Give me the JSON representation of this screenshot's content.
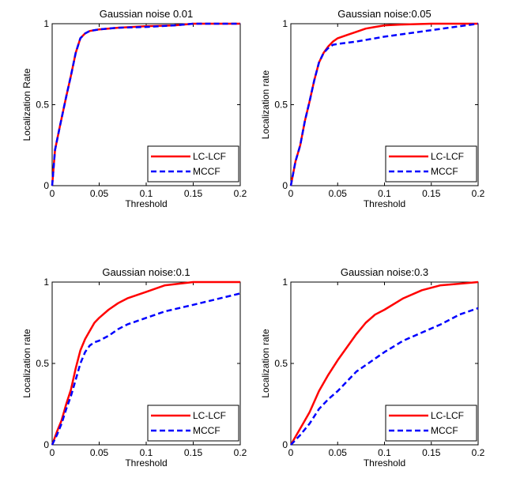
{
  "chart_data": [
    {
      "type": "line",
      "title": "Gaussian noise 0.01",
      "xlabel": "Threshold",
      "ylabel": "Localization Rate",
      "xlim": [
        0,
        0.2
      ],
      "ylim": [
        0,
        1
      ],
      "xticks": [
        "0",
        "0.05",
        "0.1",
        "0.15",
        "0.2"
      ],
      "yticks": [
        "0",
        "0.5",
        "1"
      ],
      "legend": "bottom-right",
      "grid": false,
      "series": [
        {
          "name": "LC-LCF",
          "color": "#ff0000",
          "style": "solid",
          "x": [
            0,
            0.003,
            0.008,
            0.015,
            0.02,
            0.025,
            0.03,
            0.035,
            0.04,
            0.05,
            0.07,
            0.1,
            0.13,
            0.15,
            0.2
          ],
          "y": [
            0,
            0.22,
            0.36,
            0.55,
            0.68,
            0.82,
            0.91,
            0.94,
            0.955,
            0.965,
            0.975,
            0.985,
            0.99,
            1.0,
            1.0
          ]
        },
        {
          "name": "MCCF",
          "color": "#0000ff",
          "style": "dashed",
          "x": [
            0,
            0.003,
            0.008,
            0.015,
            0.02,
            0.025,
            0.03,
            0.035,
            0.04,
            0.05,
            0.07,
            0.1,
            0.13,
            0.15,
            0.2
          ],
          "y": [
            0,
            0.22,
            0.36,
            0.55,
            0.68,
            0.82,
            0.91,
            0.94,
            0.955,
            0.965,
            0.975,
            0.98,
            0.99,
            1.0,
            1.0
          ]
        }
      ]
    },
    {
      "type": "line",
      "title": "Gaussian noise:0.05",
      "xlabel": "Threshold",
      "ylabel": "Localization rate",
      "xlim": [
        0,
        0.2
      ],
      "ylim": [
        0,
        1
      ],
      "xticks": [
        "0",
        "0.05",
        "0.1",
        "0.15",
        "0.2"
      ],
      "yticks": [
        "0",
        "0.5",
        "1"
      ],
      "legend": "bottom-right",
      "grid": false,
      "series": [
        {
          "name": "LC-LCF",
          "color": "#ff0000",
          "style": "solid",
          "x": [
            0,
            0.005,
            0.01,
            0.015,
            0.02,
            0.025,
            0.03,
            0.035,
            0.04,
            0.045,
            0.05,
            0.06,
            0.07,
            0.08,
            0.09,
            0.1,
            0.12,
            0.15,
            0.2
          ],
          "y": [
            0,
            0.15,
            0.25,
            0.4,
            0.52,
            0.65,
            0.76,
            0.82,
            0.86,
            0.89,
            0.91,
            0.93,
            0.95,
            0.97,
            0.98,
            0.99,
            0.995,
            1.0,
            1.0
          ]
        },
        {
          "name": "MCCF",
          "color": "#0000ff",
          "style": "dashed",
          "x": [
            0,
            0.005,
            0.01,
            0.015,
            0.02,
            0.025,
            0.03,
            0.035,
            0.04,
            0.045,
            0.05,
            0.07,
            0.1,
            0.15,
            0.2
          ],
          "y": [
            0,
            0.15,
            0.25,
            0.4,
            0.52,
            0.65,
            0.76,
            0.82,
            0.85,
            0.87,
            0.875,
            0.89,
            0.92,
            0.96,
            1.0
          ]
        }
      ]
    },
    {
      "type": "line",
      "title": "Gaussian noise:0.1",
      "xlabel": "Threshold",
      "ylabel": "Localization rate",
      "xlim": [
        0,
        0.2
      ],
      "ylim": [
        0,
        1
      ],
      "xticks": [
        "0",
        "0.05",
        "0.1",
        "0.15",
        "0.2"
      ],
      "yticks": [
        "0",
        "0.5",
        "1"
      ],
      "legend": "bottom-right",
      "grid": false,
      "series": [
        {
          "name": "LC-LCF",
          "color": "#ff0000",
          "style": "solid",
          "x": [
            0,
            0.005,
            0.01,
            0.015,
            0.02,
            0.025,
            0.03,
            0.035,
            0.04,
            0.045,
            0.05,
            0.06,
            0.07,
            0.08,
            0.1,
            0.12,
            0.15,
            0.2
          ],
          "y": [
            0,
            0.08,
            0.15,
            0.25,
            0.34,
            0.47,
            0.58,
            0.65,
            0.7,
            0.75,
            0.78,
            0.83,
            0.87,
            0.9,
            0.94,
            0.98,
            1.0,
            1.0
          ]
        },
        {
          "name": "MCCF",
          "color": "#0000ff",
          "style": "dashed",
          "x": [
            0,
            0.005,
            0.01,
            0.015,
            0.02,
            0.025,
            0.03,
            0.035,
            0.04,
            0.045,
            0.05,
            0.06,
            0.07,
            0.08,
            0.1,
            0.12,
            0.15,
            0.2
          ],
          "y": [
            0,
            0.06,
            0.13,
            0.22,
            0.3,
            0.4,
            0.5,
            0.57,
            0.61,
            0.63,
            0.64,
            0.67,
            0.71,
            0.74,
            0.78,
            0.82,
            0.86,
            0.93
          ]
        }
      ]
    },
    {
      "type": "line",
      "title": "Gaussian noise:0.3",
      "xlabel": "Threshold",
      "ylabel": "Localization rate",
      "xlim": [
        0,
        0.2
      ],
      "ylim": [
        0,
        1
      ],
      "xticks": [
        "0",
        "0.05",
        "0.1",
        "0.15",
        "0.2"
      ],
      "yticks": [
        "0",
        "0.5",
        "1"
      ],
      "legend": "bottom-right",
      "grid": false,
      "series": [
        {
          "name": "LC-LCF",
          "color": "#ff0000",
          "style": "solid",
          "x": [
            0,
            0.01,
            0.02,
            0.03,
            0.04,
            0.05,
            0.06,
            0.07,
            0.08,
            0.09,
            0.1,
            0.12,
            0.14,
            0.16,
            0.18,
            0.2
          ],
          "y": [
            0,
            0.1,
            0.2,
            0.33,
            0.43,
            0.52,
            0.6,
            0.68,
            0.75,
            0.8,
            0.83,
            0.9,
            0.95,
            0.98,
            0.99,
            1.0
          ]
        },
        {
          "name": "MCCF",
          "color": "#0000ff",
          "style": "dashed",
          "x": [
            0,
            0.01,
            0.02,
            0.03,
            0.04,
            0.05,
            0.06,
            0.07,
            0.08,
            0.1,
            0.12,
            0.14,
            0.16,
            0.18,
            0.2
          ],
          "y": [
            0,
            0.06,
            0.13,
            0.22,
            0.28,
            0.33,
            0.39,
            0.45,
            0.49,
            0.57,
            0.64,
            0.69,
            0.74,
            0.8,
            0.84
          ]
        }
      ]
    }
  ]
}
